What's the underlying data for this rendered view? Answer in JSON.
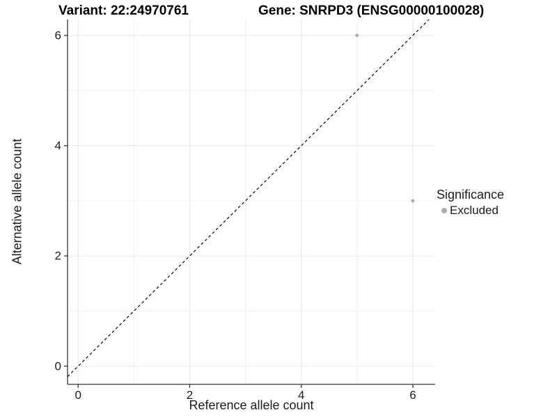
{
  "titles": {
    "left": "Variant: 22:24970761",
    "right": "Gene: SNRPD3 (ENSG00000100028)"
  },
  "chart_data": {
    "type": "scatter",
    "title": "Variant: 22:24970761 — Gene: SNRPD3 (ENSG00000100028)",
    "xlabel": "Reference allele count",
    "ylabel": "Alternative allele count",
    "xlim": [
      -0.19,
      6.4
    ],
    "ylim": [
      -0.33,
      6.29
    ],
    "xticks": [
      0,
      2,
      4,
      6
    ],
    "yticks": [
      0,
      2,
      4,
      6
    ],
    "minor_xticks": [
      1,
      3,
      5
    ],
    "minor_yticks": [
      1,
      3,
      5
    ],
    "grid": "on",
    "series": [
      {
        "name": "Excluded",
        "points": [
          {
            "x": 5,
            "y": 6
          },
          {
            "x": 6,
            "y": 3
          }
        ],
        "color": "#acacac"
      }
    ],
    "reference_line": {
      "type": "identity",
      "slope": 1,
      "intercept": 0,
      "style": "dashed",
      "color": "#000000"
    },
    "legend": {
      "title": "Significance",
      "position": "right",
      "entries": [
        {
          "label": "Excluded",
          "color": "#acacac"
        }
      ]
    },
    "colors": {
      "major_grid": "#e5e5e5",
      "minor_grid": "#f0f0f0",
      "axis_line": "#333333",
      "tick_text": "#1a1a1a",
      "point": "#acacac"
    }
  }
}
